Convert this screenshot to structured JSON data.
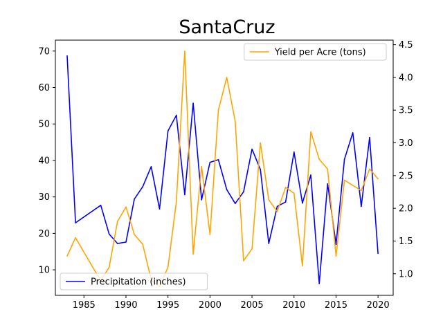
{
  "chart_data": {
    "type": "line",
    "title": "SantaCruz",
    "xlabel": "",
    "ylabel": "",
    "x_ticks": [
      "1985",
      "1990",
      "1995",
      "2000",
      "2005",
      "2010",
      "2015",
      "2020"
    ],
    "xlim": [
      1981.6,
      2021.8
    ],
    "y_left": {
      "ylim": [
        3.0,
        73.0
      ],
      "ticks": [
        "10",
        "20",
        "30",
        "40",
        "50",
        "60",
        "70"
      ]
    },
    "y_right": {
      "ylim": [
        0.67,
        4.57
      ],
      "ticks": [
        "1.0",
        "1.5",
        "2.0",
        "2.5",
        "3.0",
        "3.5",
        "4.0",
        "4.5"
      ]
    },
    "grid": false,
    "series": [
      {
        "name": "Precipitation (inches)",
        "axis": "left",
        "color": "#0000ff",
        "legend_position": "lower-left",
        "x": [
          1983,
          1984,
          1987,
          1988,
          1989,
          1990,
          1991,
          1992,
          1993,
          1994,
          1995,
          1996,
          1997,
          1998,
          1999,
          2000,
          2001,
          2002,
          2003,
          2004,
          2005,
          2006,
          2007,
          2008,
          2009,
          2010,
          2011,
          2012,
          2013,
          2014,
          2015,
          2016,
          2017,
          2018,
          2019,
          2020
        ],
        "values": [
          68.7,
          22.9,
          27.7,
          19.8,
          17.2,
          17.6,
          29.4,
          32.8,
          38.3,
          26.7,
          48.1,
          52.4,
          30.6,
          55.7,
          29.2,
          39.5,
          40.2,
          32.0,
          28.2,
          31.4,
          43.1,
          37.5,
          17.2,
          27.4,
          28.6,
          42.3,
          28.3,
          36.0,
          6.2,
          33.6,
          17.0,
          40.3,
          47.6,
          27.4,
          46.3,
          14.5
        ]
      },
      {
        "name": "Yield per Acre (tons)",
        "axis": "right",
        "color": "#ffa500",
        "legend_position": "upper-right",
        "x": [
          1983,
          1984,
          1987,
          1988,
          1989,
          1990,
          1991,
          1992,
          1993,
          1994,
          1995,
          1996,
          1997,
          1998,
          1999,
          2000,
          2001,
          2002,
          2003,
          2004,
          2005,
          2006,
          2007,
          2008,
          2009,
          2010,
          2011,
          2012,
          2013,
          2014,
          2015,
          2016,
          2017,
          2018,
          2019,
          2020
        ],
        "values": [
          1.27,
          1.55,
          0.89,
          1.1,
          1.8,
          2.02,
          1.6,
          1.45,
          0.91,
          0.8,
          1.1,
          2.1,
          4.4,
          1.3,
          2.64,
          1.6,
          3.5,
          4.0,
          3.33,
          1.2,
          1.38,
          3.0,
          2.13,
          1.95,
          2.32,
          2.23,
          1.12,
          3.17,
          2.75,
          2.6,
          1.27,
          2.43,
          2.35,
          2.27,
          2.6,
          2.45
        ]
      }
    ]
  }
}
